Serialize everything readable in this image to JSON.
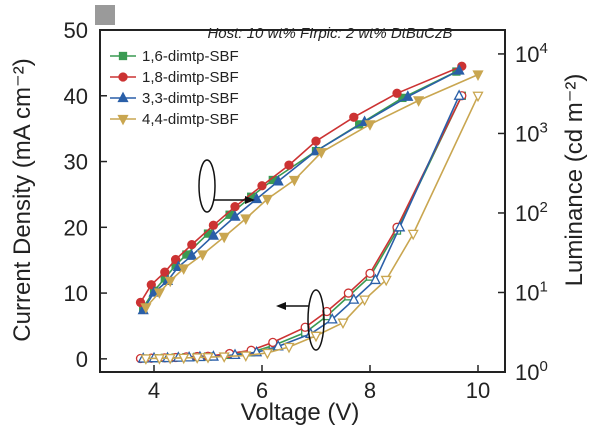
{
  "chart_data": {
    "type": "line",
    "annotation": "Host: 10 wt% FIrpic: 2 wt% DtBuCzB",
    "xlabel": "Voltage (V)",
    "ylabel_left": "Current Density (mA cm⁻²)",
    "ylabel_right": "Luminance (cd m⁻²)",
    "xlim": [
      3.0,
      10.5
    ],
    "ylim_left": [
      -2,
      50
    ],
    "ylim_right_log": [
      1,
      20000
    ],
    "x_ticks": [
      "4",
      "6",
      "8",
      "10"
    ],
    "y_left_ticks": [
      "0",
      "10",
      "20",
      "30",
      "40",
      "50"
    ],
    "y_right_ticks": [
      {
        "base": "10",
        "exp": "0"
      },
      {
        "base": "10",
        "exp": "1"
      },
      {
        "base": "10",
        "exp": "2"
      },
      {
        "base": "10",
        "exp": "3"
      },
      {
        "base": "10",
        "exp": "4"
      }
    ],
    "legend_position": "top-left",
    "series": [
      {
        "name": "1,6-dimtp-SBF",
        "color": "#3a9a52",
        "marker": "square",
        "luminance": {
          "x": [
            3.8,
            4.0,
            4.2,
            4.4,
            4.6,
            5.0,
            5.4,
            5.8,
            6.2,
            7.0,
            7.8,
            8.6,
            9.6
          ],
          "y": [
            6.5,
            10.5,
            15,
            22,
            30,
            55,
            95,
            160,
            260,
            600,
            1300,
            2800,
            6000
          ]
        },
        "current": {
          "x": [
            3.8,
            4.0,
            4.2,
            4.4,
            4.6,
            4.8,
            5.0,
            5.4,
            5.8,
            6.2,
            6.8,
            7.2,
            7.6,
            8.0,
            8.5,
            9.7
          ],
          "y": [
            0.05,
            0.1,
            0.15,
            0.2,
            0.25,
            0.3,
            0.35,
            0.6,
            1.0,
            2.0,
            4.0,
            6.5,
            9.5,
            12.5,
            19.5,
            40
          ]
        }
      },
      {
        "name": "1,8-dimtp-SBF",
        "color": "#cc3333",
        "marker": "circle",
        "luminance": {
          "x": [
            3.75,
            3.95,
            4.2,
            4.4,
            4.7,
            5.1,
            5.5,
            6.0,
            6.5,
            7.0,
            7.7,
            8.5,
            9.7
          ],
          "y": [
            7.5,
            12.5,
            18,
            26,
            40,
            70,
            120,
            220,
            400,
            800,
            1600,
            3200,
            7000
          ]
        },
        "current": {
          "x": [
            3.75,
            3.95,
            4.2,
            4.4,
            4.6,
            4.8,
            5.0,
            5.4,
            5.8,
            6.2,
            6.8,
            7.2,
            7.6,
            8.0,
            8.5,
            9.7
          ],
          "y": [
            0.05,
            0.1,
            0.15,
            0.2,
            0.3,
            0.35,
            0.4,
            0.8,
            1.3,
            2.5,
            4.8,
            7.2,
            10,
            13,
            20,
            40
          ]
        }
      },
      {
        "name": "3,3-dimtp-SBF",
        "color": "#2a5fa8",
        "marker": "triangle",
        "luminance": {
          "x": [
            3.8,
            4.0,
            4.25,
            4.45,
            4.7,
            5.1,
            5.5,
            5.9,
            6.3,
            7.0,
            7.9,
            8.7,
            9.65
          ],
          "y": [
            6.0,
            10,
            14,
            21,
            29,
            52,
            90,
            150,
            250,
            600,
            1400,
            2900,
            6200
          ]
        },
        "current": {
          "x": [
            3.8,
            4.0,
            4.25,
            4.45,
            4.65,
            4.85,
            5.1,
            5.5,
            5.9,
            6.3,
            6.9,
            7.3,
            7.7,
            8.1,
            8.55,
            9.65
          ],
          "y": [
            0.05,
            0.1,
            0.12,
            0.18,
            0.22,
            0.28,
            0.35,
            0.6,
            1.0,
            1.9,
            3.8,
            6.0,
            9.0,
            12,
            20,
            40
          ]
        }
      },
      {
        "name": "4,4-dimtp-SBF",
        "color": "#c9a650",
        "marker": "triangle-down",
        "luminance": {
          "x": [
            3.85,
            4.1,
            4.3,
            4.55,
            4.9,
            5.3,
            5.7,
            6.1,
            6.6,
            7.1,
            8.0,
            8.9,
            10.0
          ],
          "y": [
            6.5,
            10,
            14,
            20,
            30,
            50,
            85,
            150,
            260,
            580,
            1300,
            2600,
            5500
          ]
        },
        "current": {
          "x": [
            3.85,
            4.1,
            4.3,
            4.55,
            4.8,
            5.0,
            5.3,
            5.7,
            6.1,
            6.5,
            7.0,
            7.5,
            7.9,
            8.3,
            8.8,
            10.0
          ],
          "y": [
            0.05,
            0.08,
            0.12,
            0.15,
            0.2,
            0.25,
            0.35,
            0.5,
            0.9,
            1.8,
            3.5,
            5.5,
            9.0,
            12,
            19,
            40
          ]
        }
      }
    ]
  }
}
